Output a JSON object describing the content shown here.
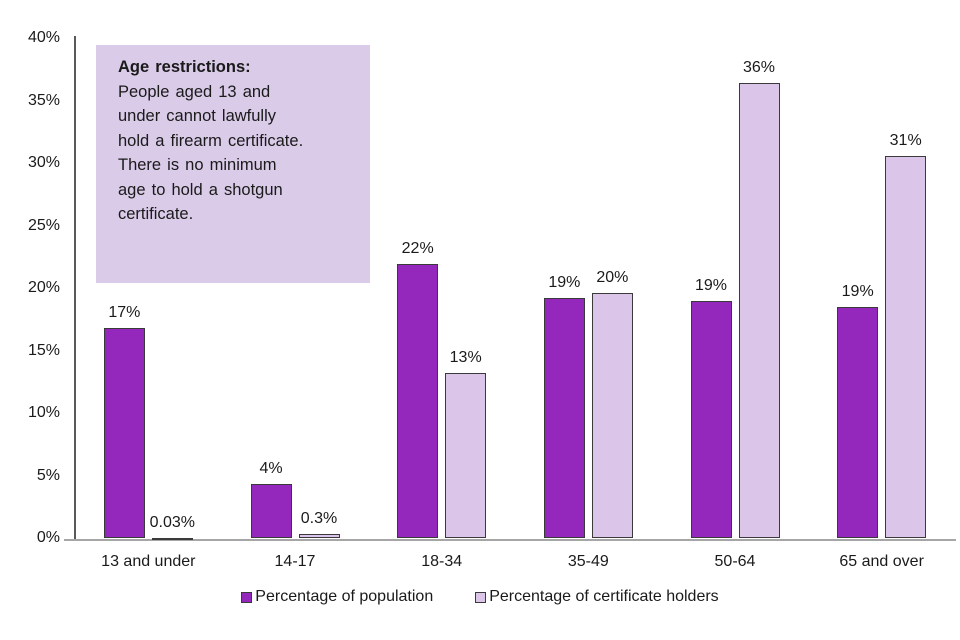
{
  "chart_data": {
    "type": "bar",
    "title": "",
    "xlabel": "",
    "ylabel": "",
    "ylim": [
      0,
      40
    ],
    "ytick_step": 5,
    "ytick_labels": [
      "0%",
      "5%",
      "10%",
      "15%",
      "20%",
      "25%",
      "30%",
      "35%",
      "40%"
    ],
    "grid": false,
    "legend_position": "bottom-center",
    "categories": [
      "13 and under",
      "14-17",
      "18-34",
      "35-49",
      "50-64",
      "65 and over"
    ],
    "series": [
      {
        "name": "Percentage of population",
        "color": "#9428bc",
        "values": [
          16.8,
          4.3,
          21.9,
          19.2,
          19.0,
          18.5
        ],
        "labels": [
          "17%",
          "4%",
          "22%",
          "19%",
          "19%",
          "19%"
        ]
      },
      {
        "name": "Percentage of certificate holders",
        "color": "#dbc6e9",
        "values": [
          0.03,
          0.3,
          13.2,
          19.6,
          36.4,
          30.6
        ],
        "labels": [
          "0.03%",
          "0.3%",
          "13%",
          "20%",
          "36%",
          "31%"
        ]
      }
    ]
  },
  "annotation": {
    "title": "Age restrictions:",
    "lines": [
      "People aged 13 and",
      "under cannot lawfully",
      "hold a firearm certificate.",
      "There is no minimum",
      "age to hold a shotgun",
      "certificate."
    ],
    "background": "#dacbe9"
  },
  "colors": {
    "bar_border": "#3a3a3a",
    "y_axis_line": "#595959",
    "x_axis_line": "#a6a6a6",
    "text": "#1a1a1a"
  }
}
